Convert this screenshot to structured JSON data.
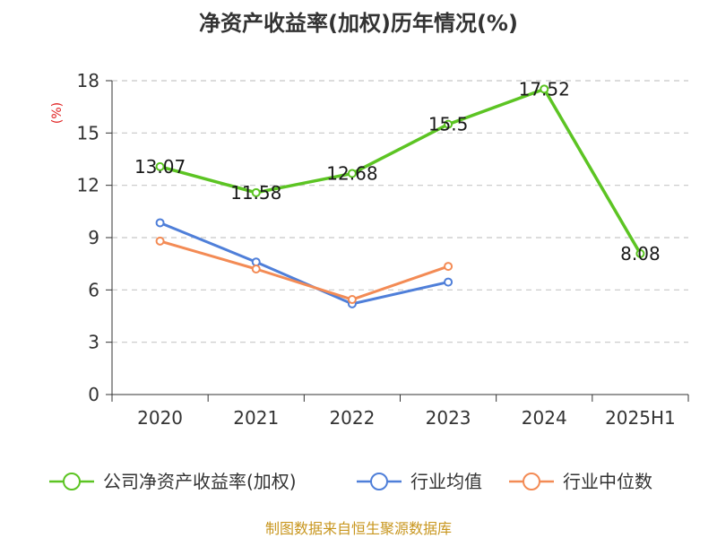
{
  "chart_data": {
    "type": "line",
    "title": "净资产收益率(加权)历年情况(%)",
    "ylabel": "(%)",
    "xlabel": "",
    "categories": [
      "2020",
      "2021",
      "2022",
      "2023",
      "2024",
      "2025H1"
    ],
    "ylim": [
      0,
      18
    ],
    "yticks": [
      0,
      3,
      6,
      9,
      12,
      15,
      18
    ],
    "grid": true,
    "legend_position": "bottom",
    "series": [
      {
        "name": "公司净资产收益率(加权)",
        "color": "#5cc423",
        "values": [
          13.07,
          11.58,
          12.68,
          15.5,
          17.52,
          8.08
        ],
        "labels": [
          "13.07",
          "11.58",
          "12.68",
          "15.5",
          "17.52",
          "8.08"
        ]
      },
      {
        "name": "行业均值",
        "color": "#4f7fd9",
        "values": [
          9.85,
          7.6,
          5.2,
          6.45,
          null,
          null
        ]
      },
      {
        "name": "行业中位数",
        "color": "#f38b55",
        "values": [
          8.8,
          7.2,
          5.45,
          7.35,
          null,
          null
        ]
      }
    ]
  },
  "source": "制图数据来自恒生聚源数据库"
}
